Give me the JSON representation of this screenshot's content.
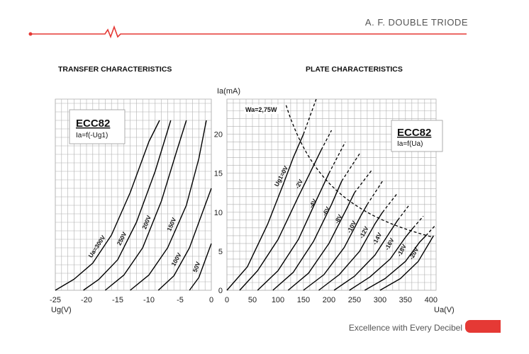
{
  "header": {
    "title": "A. F. DOUBLE TRIODE"
  },
  "footer": {
    "tagline": "Excellence with Every Decibel"
  },
  "colors": {
    "accent": "#e53935",
    "grid": "#b0b0b0",
    "curve": "#000000"
  },
  "chart_data": [
    {
      "type": "line",
      "title": "TRANSFER CHARACTERISTICS",
      "box_title": "ECC82",
      "box_subtitle": "Ia=f(-Ug1)",
      "xlabel": "Ug(V)",
      "ylabel": "",
      "xlim": [
        -25,
        0
      ],
      "ylim": [
        0,
        22.5
      ],
      "xticks": [
        "-25",
        "-20",
        "-15",
        "-10",
        "-5",
        "0"
      ],
      "grid": true,
      "series": [
        {
          "name": "Ua=300V",
          "label_value": -15.5,
          "x": [
            -25,
            -22,
            -19,
            -16,
            -13,
            -10,
            -8.3
          ],
          "y": [
            0,
            1.3,
            3.2,
            6.5,
            11.5,
            17.5,
            20
          ]
        },
        {
          "name": "250V",
          "label_value": -12,
          "x": [
            -20.5,
            -18,
            -15,
            -12,
            -9,
            -6.5
          ],
          "y": [
            0,
            1.3,
            3.6,
            8,
            14,
            20
          ]
        },
        {
          "name": "200V",
          "label_value": -8,
          "x": [
            -17,
            -14,
            -11,
            -8,
            -5.5,
            -4
          ],
          "y": [
            0,
            1.8,
            5,
            10.5,
            16.5,
            20
          ]
        },
        {
          "name": "150V",
          "label_value": -3.5,
          "x": [
            -13,
            -10,
            -7,
            -4,
            -2,
            -0.8
          ],
          "y": [
            0,
            1.8,
            5,
            10,
            15.5,
            20
          ]
        },
        {
          "name": "100V",
          "label_value": -3,
          "x": [
            -8.5,
            -6,
            -3.5,
            -1.5,
            0
          ],
          "y": [
            0,
            1.7,
            5,
            9,
            12
          ]
        },
        {
          "name": "50V",
          "label_value": -1.5,
          "x": [
            -3.5,
            -2,
            -1,
            0
          ],
          "y": [
            0,
            1.5,
            3.5,
            5.5
          ]
        }
      ]
    },
    {
      "type": "line",
      "title": "PLATE CHARACTERISTICS",
      "box_title": "ECC82",
      "box_subtitle": "Ia=f(Ua)",
      "annotation": "Wa=2,75W",
      "xlabel": "Ua(V)",
      "ylabel": "Ia(mA)",
      "xlim": [
        0,
        410
      ],
      "ylim": [
        0,
        24.5
      ],
      "xticks": [
        0,
        50,
        100,
        150,
        200,
        250,
        300,
        350,
        400
      ],
      "yticks": [
        0,
        5,
        10,
        15,
        20
      ],
      "grid": true,
      "series": [
        {
          "name": "Ug1=0V",
          "label_at": [
            110,
            14.5
          ],
          "x": [
            0,
            40,
            80,
            110,
            130,
            150
          ],
          "y": [
            0,
            3,
            8.5,
            13.5,
            17,
            20
          ]
        },
        {
          "name": "-2V",
          "label_at": [
            145,
            13.5
          ],
          "x": [
            25,
            60,
            100,
            140,
            170,
            185
          ],
          "y": [
            0,
            2.5,
            6.5,
            12,
            16,
            18
          ]
        },
        {
          "name": "-4V",
          "label_at": [
            172,
            11
          ],
          "x": [
            60,
            100,
            140,
            175,
            200
          ],
          "y": [
            0,
            2.5,
            6.5,
            11.5,
            15
          ]
        },
        {
          "name": "-6V",
          "label_at": [
            198,
            10
          ],
          "x": [
            90,
            130,
            170,
            205,
            225
          ],
          "y": [
            0,
            2.3,
            6.3,
            11,
            14
          ]
        },
        {
          "name": "-8V",
          "label_at": [
            222,
            9
          ],
          "x": [
            120,
            160,
            200,
            235,
            250
          ],
          "y": [
            0,
            2.2,
            6,
            10.5,
            12.5
          ]
        },
        {
          "name": "-10V",
          "label_at": [
            248,
            8
          ],
          "x": [
            150,
            190,
            230,
            262,
            275
          ],
          "y": [
            0,
            2,
            5.5,
            9.5,
            11
          ]
        },
        {
          "name": "-12V",
          "label_at": [
            272,
            7.3
          ],
          "x": [
            180,
            220,
            260,
            290,
            305
          ],
          "y": [
            0,
            2,
            5,
            8.5,
            10
          ]
        },
        {
          "name": "-14V",
          "label_at": [
            298,
            6.5
          ],
          "x": [
            210,
            250,
            290,
            320,
            335
          ],
          "y": [
            0,
            1.8,
            4.5,
            7.5,
            9
          ]
        },
        {
          "name": "-16V",
          "label_at": [
            322,
            5.8
          ],
          "x": [
            240,
            280,
            320,
            350,
            365
          ],
          "y": [
            0,
            1.7,
            4,
            6.8,
            8
          ]
        },
        {
          "name": "-18V",
          "label_at": [
            346,
            5
          ],
          "x": [
            270,
            310,
            350,
            378,
            390
          ],
          "y": [
            0,
            1.5,
            3.7,
            6.2,
            7
          ]
        },
        {
          "name": "-20V",
          "label_at": [
            370,
            4.6
          ],
          "x": [
            300,
            340,
            375,
            405
          ],
          "y": [
            0,
            1.5,
            3.7,
            7
          ]
        }
      ],
      "dashed_extensions": [
        {
          "x": [
            150,
            175
          ],
          "y": [
            20,
            24.5
          ]
        },
        {
          "x": [
            185,
            205
          ],
          "y": [
            18,
            20.5
          ]
        },
        {
          "x": [
            200,
            232
          ],
          "y": [
            15,
            19
          ]
        },
        {
          "x": [
            225,
            260
          ],
          "y": [
            14,
            17.5
          ]
        },
        {
          "x": [
            250,
            285
          ],
          "y": [
            12.5,
            15.5
          ]
        },
        {
          "x": [
            275,
            305
          ],
          "y": [
            11,
            14
          ]
        },
        {
          "x": [
            305,
            335
          ],
          "y": [
            10,
            12.5
          ]
        },
        {
          "x": [
            335,
            358
          ],
          "y": [
            9,
            11
          ]
        },
        {
          "x": [
            365,
            385
          ],
          "y": [
            8,
            9.5
          ]
        },
        {
          "x": [
            390,
            408
          ],
          "y": [
            7,
            8.3
          ]
        }
      ],
      "power_curve": {
        "label": "Wa=2,75W",
        "power_w": 2.75,
        "x_range": [
          112,
          400
        ]
      }
    }
  ]
}
